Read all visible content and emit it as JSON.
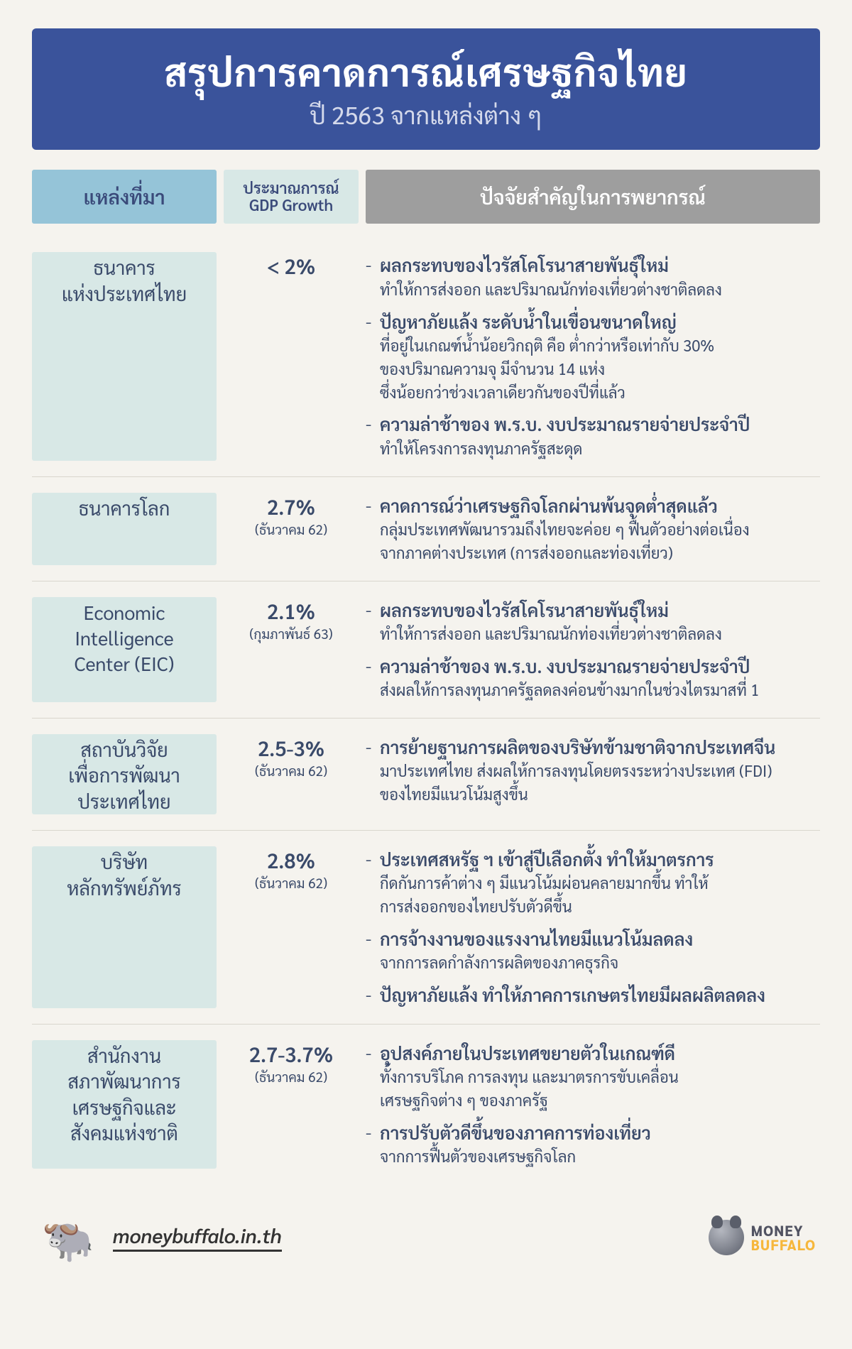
{
  "header": {
    "title": "สรุปการคาดการณ์เศรษฐกิจไทย",
    "subtitle": "ปี 2563 จากแหล่งต่าง ๆ",
    "banner_bg": "#3a539b",
    "title_color": "#ffffff",
    "subtitle_color": "#d4d9eb"
  },
  "columns": [
    {
      "label": "แหล่งที่มา",
      "bg": "#95c4d8",
      "text": "#3a4a7a"
    },
    {
      "label": "ประมาณการณ์\nGDP Growth",
      "bg": "#d8e8e6",
      "text": "#3a4a7a"
    },
    {
      "label": "ปัจจัยสำคัญในการพยากรณ์",
      "bg": "#9e9e9e",
      "text": "#ffffff"
    }
  ],
  "rows": [
    {
      "source": "ธนาคาร\nแห่งประเทศไทย",
      "source_bg": "#d8e8e6",
      "gdp": "< 2%",
      "gdp_note": "",
      "factors": [
        {
          "main": "ผลกระทบของไวรัสโคโรนาสายพันธุ์ใหม่",
          "subs": [
            "ทำให้การส่งออก และปริมาณนักท่องเที่ยวต่างชาติลดลง"
          ]
        },
        {
          "main": "ปัญหาภัยแล้ง ระดับน้ำในเขื่อนขนาดใหญ่",
          "subs": [
            "ที่อยู่ในเกณฑ์น้ำน้อยวิกฤติ คือ ต่ำกว่าหรือเท่ากับ 30%",
            "ของปริมาณความจุ มีจำนวน 14 แห่ง",
            "ซึ่งน้อยกว่าช่วงเวลาเดียวกันของปีที่แล้ว"
          ]
        },
        {
          "main": "ความล่าช้าของ พ.ร.บ. งบประมาณรายจ่ายประจำปี",
          "subs": [
            "ทำให้โครงการลงทุนภาครัฐสะดุด"
          ]
        }
      ]
    },
    {
      "source": "ธนาคารโลก",
      "source_bg": "#d8e8e6",
      "gdp": "2.7%",
      "gdp_note": "(ธันวาคม 62)",
      "factors": [
        {
          "main": "คาดการณ์ว่าเศรษฐกิจโลกผ่านพ้นจุดต่ำสุดแล้ว",
          "subs": [
            "กลุ่มประเทศพัฒนารวมถึงไทยจะค่อย ๆ ฟื้นตัวอย่างต่อเนื่อง",
            "จากภาคต่างประเทศ (การส่งออกและท่องเที่ยว)"
          ]
        }
      ]
    },
    {
      "source": "Economic\nIntelligence\nCenter (EIC)",
      "source_bg": "#d8e8e6",
      "gdp": "2.1%",
      "gdp_note": "(กุมภาพันธ์ 63)",
      "factors": [
        {
          "main": "ผลกระทบของไวรัสโคโรนาสายพันธุ์ใหม่",
          "subs": [
            "ทำให้การส่งออก และปริมาณนักท่องเที่ยวต่างชาติลดลง"
          ]
        },
        {
          "main": "ความล่าช้าของ พ.ร.บ. งบประมาณรายจ่ายประจำปี",
          "subs": [
            "ส่งผลให้การลงทุนภาครัฐลดลงค่อนข้างมากในช่วงไตรมาสที่ 1"
          ]
        }
      ]
    },
    {
      "source": "สถาบันวิจัย\nเพื่อการพัฒนา\nประเทศไทย",
      "source_bg": "#d8e8e6",
      "gdp": "2.5-3%",
      "gdp_note": "(ธันวาคม 62)",
      "factors": [
        {
          "main": "การย้ายฐานการผลิตของบริษัทข้ามชาติจากประเทศจีน",
          "subs": [
            "มาประเทศไทย ส่งผลให้การลงทุนโดยตรงระหว่างประเทศ (FDI)",
            "ของไทยมีแนวโน้มสูงขึ้น"
          ]
        }
      ]
    },
    {
      "source": "บริษัท\nหลักทรัพย์ภัทร",
      "source_bg": "#d8e8e6",
      "gdp": "2.8%",
      "gdp_note": "(ธันวาคม 62)",
      "factors": [
        {
          "main": "ประเทศสหรัฐ ฯ เข้าสู่ปีเลือกตั้ง ทำให้มาตรการ",
          "subs": [
            "กีดกันการค้าต่าง ๆ มีแนวโน้มผ่อนคลายมากขึ้น ทำให้",
            "การส่งออกของไทยปรับตัวดีขึ้น"
          ]
        },
        {
          "main": "การจ้างงานของแรงงานไทยมีแนวโน้มลดลง",
          "subs": [
            "จากการลดกำลังการผลิตของภาคธุรกิจ"
          ]
        },
        {
          "main": "ปัญหาภัยแล้ง ทำให้ภาคการเกษตรไทยมีผลผลิตลดลง",
          "subs": []
        }
      ]
    },
    {
      "source": "สำนักงาน\nสภาพัฒนาการ\nเศรษฐกิจและ\nสังคมแห่งชาติ",
      "source_bg": "#d8e8e6",
      "gdp": "2.7-3.7%",
      "gdp_note": "(ธันวาคม 62)",
      "factors": [
        {
          "main": "อุปสงค์ภายในประเทศขยายตัวในเกณฑ์ดี",
          "subs": [
            "ทั้งการบริโภค การลงทุน และมาตรการขับเคลื่อน",
            "เศรษฐกิจต่าง ๆ ของภาครัฐ"
          ]
        },
        {
          "main": "การปรับตัวดีขึ้นของภาคการท่องเที่ยว",
          "subs": [
            "จากการฟื้นตัวของเศรษฐกิจโลก"
          ]
        }
      ]
    }
  ],
  "footer": {
    "url": "moneybuffalo.in.th",
    "brand_l1": "MONEY",
    "brand_l2": "BUFFALO",
    "brand_l1_color": "#515362",
    "brand_l2_color": "#f6b73c"
  },
  "layout": {
    "page_bg": "#f5f3ee",
    "row_border": "#d9d6cd",
    "col_widths": [
      "260px",
      "190px",
      "1fr"
    ],
    "text_color": "#3a4a6a"
  }
}
